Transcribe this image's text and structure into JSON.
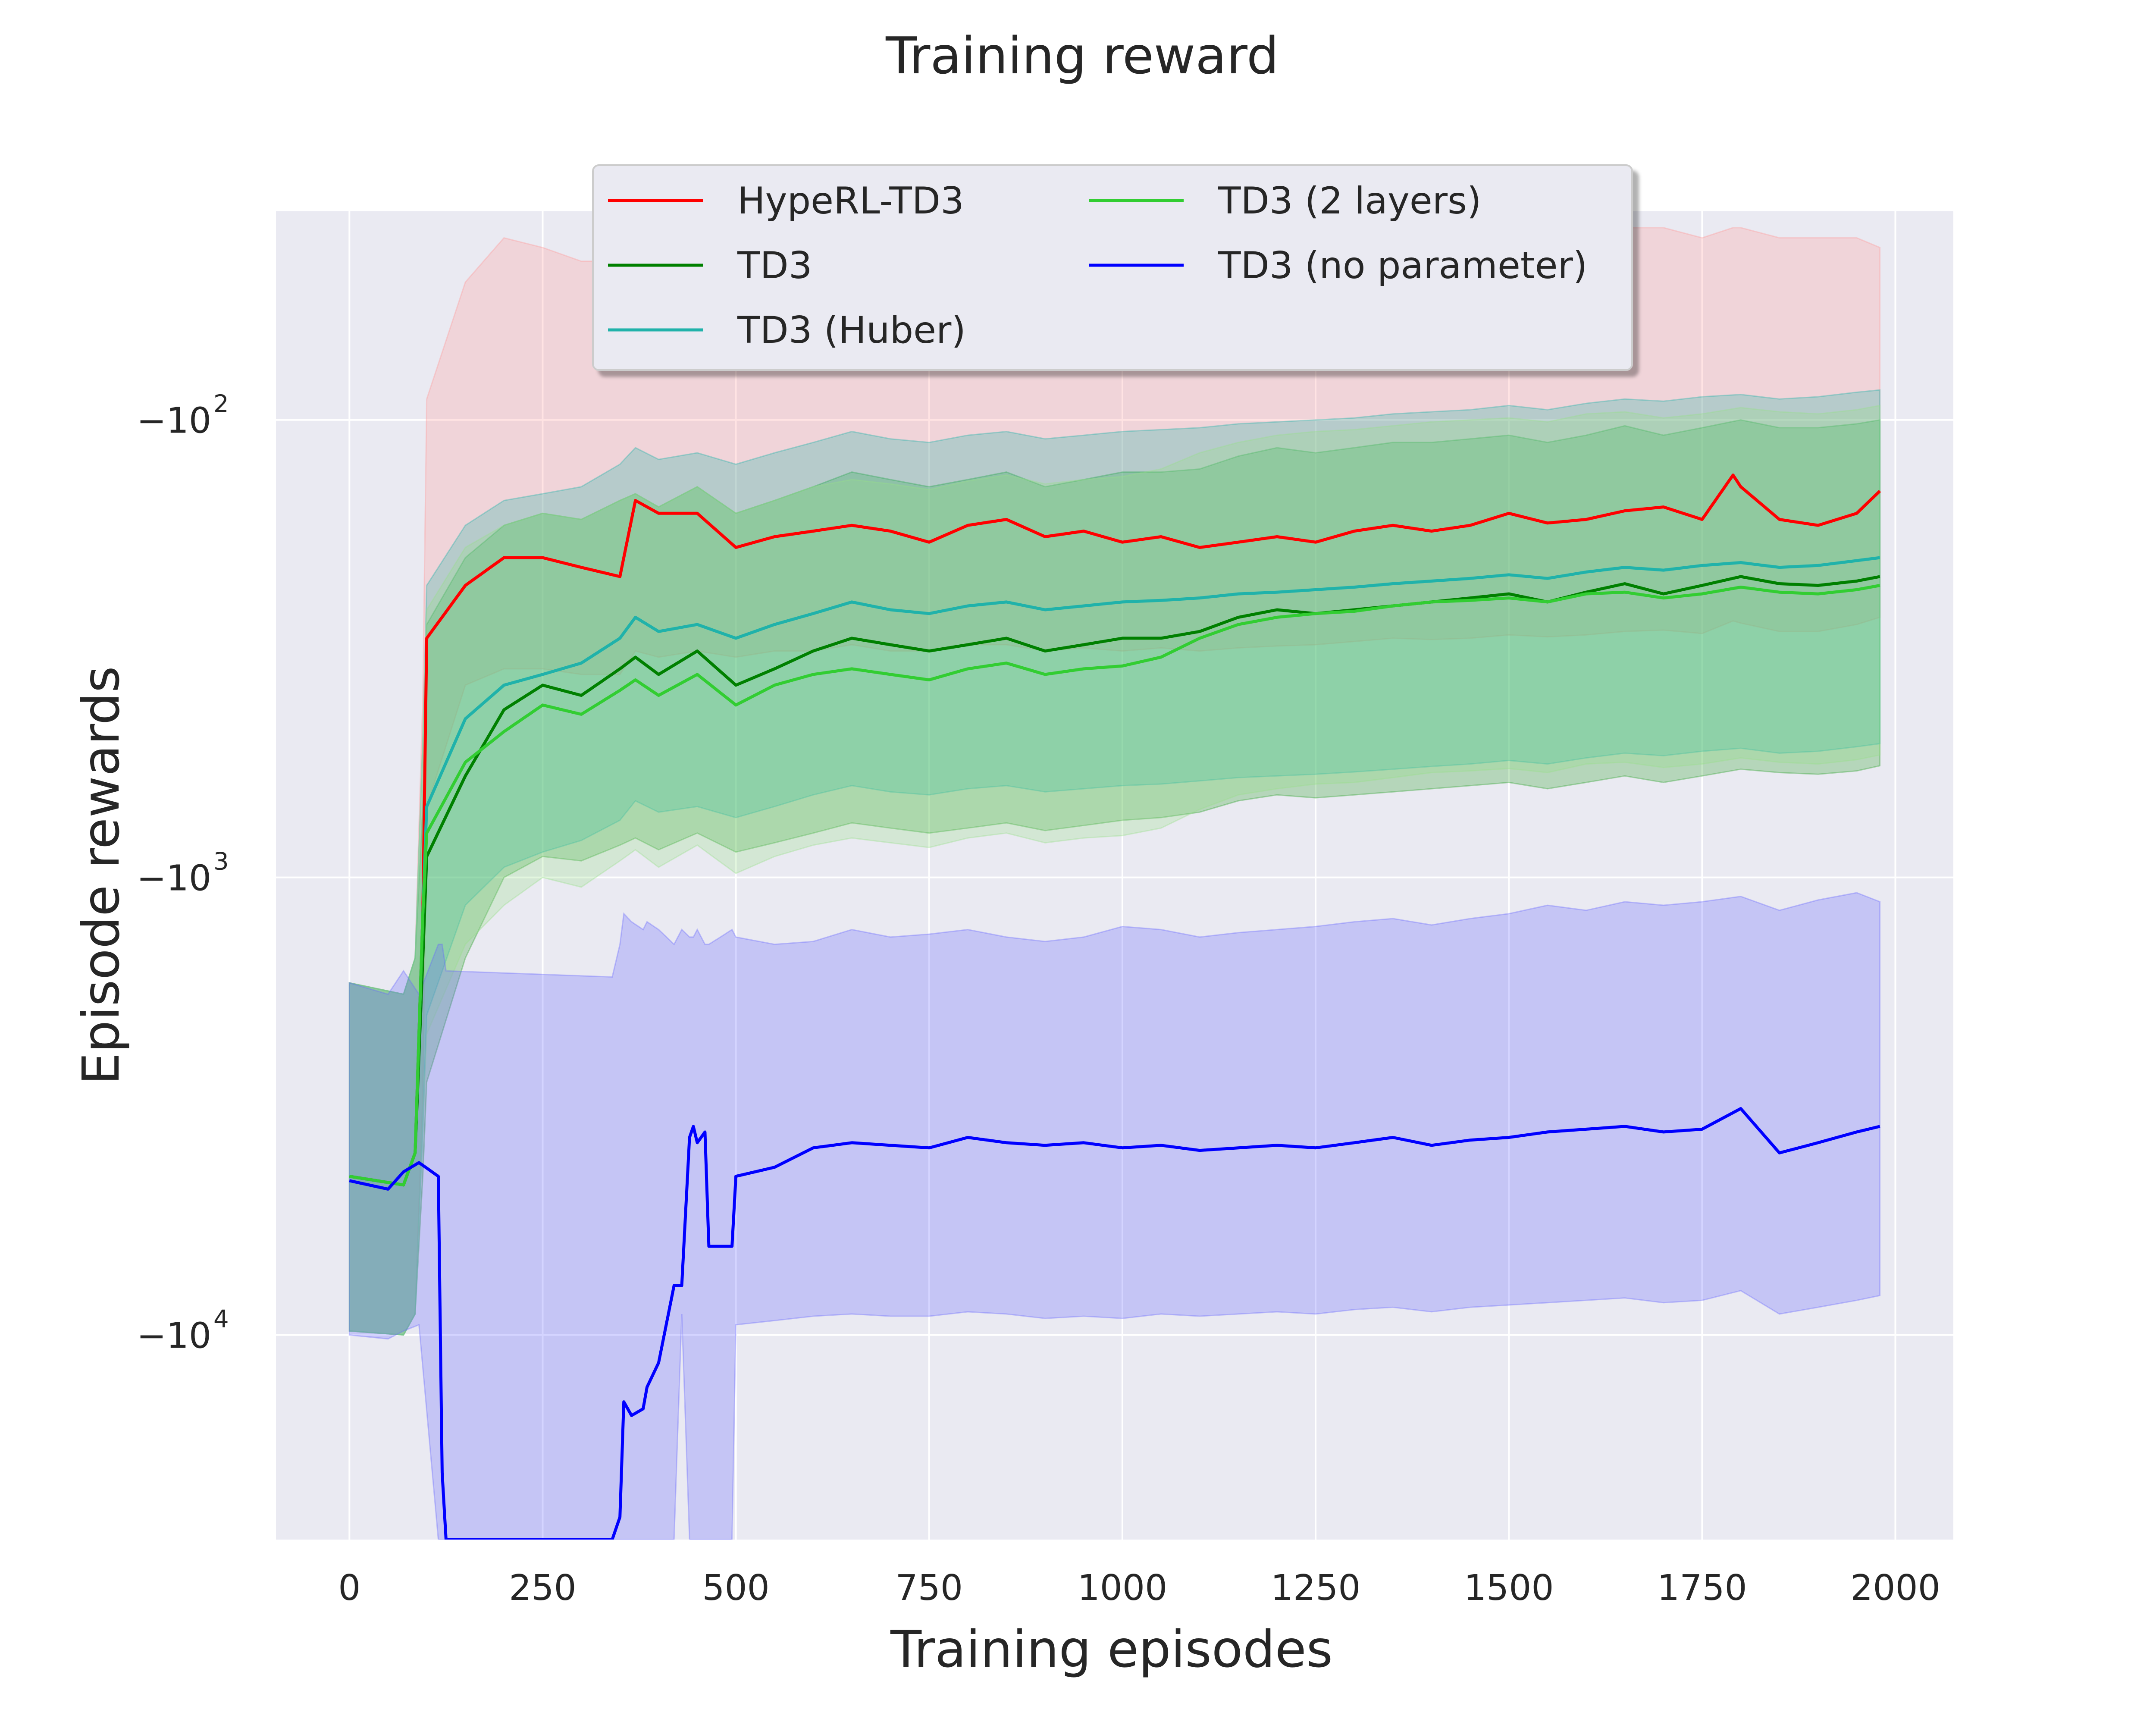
{
  "chart_data": {
    "type": "line",
    "title": "Training reward",
    "xlabel": "Training episodes",
    "ylabel": "Episode rewards",
    "xlim": [
      -95,
      2075
    ],
    "x_ticks": [
      0,
      250,
      500,
      750,
      1000,
      1250,
      1500,
      1750,
      2000
    ],
    "x_tick_labels": [
      "0",
      "250",
      "500",
      "750",
      "1000",
      "1250",
      "1500",
      "1750",
      "2000"
    ],
    "yscale": "symlog-negative",
    "ylim": [
      -28000,
      -35
    ],
    "y_ticks": [
      -100,
      -1000,
      -10000
    ],
    "y_tick_labels": [
      {
        "base": "−10",
        "exp": "2"
      },
      {
        "base": "−10",
        "exp": "3"
      },
      {
        "base": "−10",
        "exp": "4"
      }
    ],
    "grid": true,
    "legend_position": "top-center",
    "legend_columns": 2,
    "colors": {
      "background": "#eaeaf2",
      "grid": "#ffffff",
      "text": "#262626"
    },
    "series": [
      {
        "name": "HypeRL-TD3",
        "color": "#ff0000",
        "band_color": "#ff9999",
        "x": [
          0,
          70,
          85,
          95,
          100,
          150,
          200,
          250,
          300,
          350,
          370,
          400,
          450,
          500,
          550,
          600,
          650,
          700,
          750,
          800,
          850,
          900,
          950,
          1000,
          1050,
          1100,
          1150,
          1200,
          1250,
          1300,
          1350,
          1400,
          1450,
          1500,
          1550,
          1600,
          1650,
          1700,
          1750,
          1790,
          1800,
          1850,
          1900,
          1950,
          1980
        ],
        "mean": [
          -4500,
          -4700,
          -4000,
          -1200,
          -300,
          -230,
          -200,
          -200,
          -210,
          -220,
          -150,
          -160,
          -160,
          -190,
          -180,
          -175,
          -170,
          -175,
          -185,
          -170,
          -165,
          -180,
          -175,
          -185,
          -180,
          -190,
          -185,
          -180,
          -185,
          -175,
          -170,
          -175,
          -170,
          -160,
          -168,
          -165,
          -158,
          -155,
          -165,
          -132,
          -140,
          -165,
          -170,
          -160,
          -143
        ],
        "upper": [
          -1700,
          -1800,
          -1500,
          -400,
          -90,
          -50,
          -40,
          -42,
          -45,
          -45,
          -40,
          -42,
          -42,
          -45,
          -43,
          -42,
          -40,
          -42,
          -42,
          -40,
          -40,
          -42,
          -40,
          -42,
          -42,
          -43,
          -43,
          -42,
          -42,
          -42,
          -40,
          -42,
          -40,
          -38,
          -40,
          -40,
          -38,
          -38,
          -40,
          -38,
          -38,
          -40,
          -40,
          -40,
          -42
        ],
        "lower": [
          -9800,
          -10000,
          -9000,
          -3000,
          -700,
          -380,
          -350,
          -350,
          -360,
          -360,
          -320,
          -330,
          -320,
          -330,
          -320,
          -320,
          -310,
          -320,
          -320,
          -310,
          -310,
          -320,
          -315,
          -320,
          -315,
          -320,
          -315,
          -312,
          -310,
          -305,
          -300,
          -302,
          -300,
          -295,
          -298,
          -295,
          -290,
          -288,
          -293,
          -275,
          -278,
          -290,
          -290,
          -280,
          -270
        ]
      },
      {
        "name": "TD3",
        "color": "#008000",
        "band_color": "#2ca02c",
        "x": [
          0,
          70,
          85,
          95,
          100,
          150,
          200,
          250,
          300,
          350,
          370,
          400,
          450,
          500,
          550,
          600,
          650,
          700,
          750,
          800,
          850,
          900,
          950,
          1000,
          1050,
          1100,
          1150,
          1200,
          1250,
          1300,
          1350,
          1400,
          1450,
          1500,
          1550,
          1600,
          1650,
          1700,
          1750,
          1800,
          1850,
          1900,
          1950,
          1980
        ],
        "mean": [
          -4500,
          -4700,
          -4000,
          -1500,
          -900,
          -600,
          -430,
          -380,
          -400,
          -350,
          -330,
          -360,
          -320,
          -380,
          -350,
          -320,
          -300,
          -310,
          -320,
          -310,
          -300,
          -320,
          -310,
          -300,
          -300,
          -290,
          -270,
          -260,
          -265,
          -260,
          -255,
          -250,
          -245,
          -240,
          -250,
          -238,
          -228,
          -240,
          -230,
          -220,
          -228,
          -230,
          -225,
          -220
        ],
        "upper": [
          -1700,
          -1800,
          -1500,
          -700,
          -280,
          -200,
          -170,
          -160,
          -165,
          -150,
          -145,
          -155,
          -140,
          -160,
          -150,
          -140,
          -130,
          -135,
          -140,
          -135,
          -130,
          -140,
          -135,
          -130,
          -130,
          -128,
          -120,
          -115,
          -118,
          -115,
          -112,
          -112,
          -110,
          -108,
          -112,
          -108,
          -103,
          -108,
          -104,
          -100,
          -104,
          -104,
          -102,
          -100
        ],
        "lower": [
          -9800,
          -10000,
          -9000,
          -4500,
          -2800,
          -1500,
          -1000,
          -900,
          -920,
          -850,
          -820,
          -870,
          -800,
          -880,
          -840,
          -800,
          -760,
          -780,
          -800,
          -780,
          -760,
          -790,
          -770,
          -750,
          -740,
          -720,
          -680,
          -660,
          -670,
          -660,
          -650,
          -640,
          -630,
          -620,
          -640,
          -620,
          -600,
          -620,
          -600,
          -580,
          -590,
          -595,
          -585,
          -570
        ]
      },
      {
        "name": "TD3 (Huber)",
        "color": "#20b2aa",
        "band_color": "#20b2aa",
        "x": [
          0,
          70,
          85,
          95,
          100,
          150,
          200,
          250,
          300,
          350,
          370,
          400,
          450,
          500,
          550,
          600,
          650,
          700,
          750,
          800,
          850,
          900,
          950,
          1000,
          1050,
          1100,
          1150,
          1200,
          1250,
          1300,
          1350,
          1400,
          1450,
          1500,
          1550,
          1600,
          1650,
          1700,
          1750,
          1800,
          1850,
          1900,
          1950,
          1980
        ],
        "mean": [
          -4500,
          -4700,
          -4000,
          -1200,
          -700,
          -450,
          -380,
          -360,
          -340,
          -300,
          -270,
          -290,
          -280,
          -300,
          -280,
          -265,
          -250,
          -260,
          -265,
          -255,
          -250,
          -260,
          -255,
          -250,
          -248,
          -245,
          -240,
          -238,
          -235,
          -232,
          -228,
          -225,
          -222,
          -218,
          -222,
          -215,
          -210,
          -213,
          -208,
          -205,
          -210,
          -208,
          -203,
          -200
        ],
        "upper": [
          -1700,
          -1800,
          -1500,
          -500,
          -230,
          -170,
          -150,
          -145,
          -140,
          -125,
          -115,
          -122,
          -118,
          -125,
          -118,
          -112,
          -106,
          -110,
          -112,
          -108,
          -106,
          -110,
          -108,
          -106,
          -105,
          -104,
          -102,
          -101,
          -100,
          -99,
          -97,
          -96,
          -95,
          -93,
          -95,
          -92,
          -90,
          -91,
          -89,
          -88,
          -90,
          -89,
          -87,
          -86
        ],
        "lower": [
          -9800,
          -10000,
          -9000,
          -3500,
          -2000,
          -1150,
          -950,
          -880,
          -830,
          -750,
          -680,
          -720,
          -700,
          -740,
          -700,
          -660,
          -630,
          -650,
          -660,
          -640,
          -630,
          -650,
          -640,
          -630,
          -625,
          -615,
          -605,
          -600,
          -595,
          -588,
          -580,
          -572,
          -565,
          -555,
          -565,
          -548,
          -535,
          -542,
          -530,
          -522,
          -535,
          -530,
          -518,
          -510
        ]
      },
      {
        "name": "TD3 (2 layers)",
        "color": "#32cd32",
        "band_color": "#98df8a",
        "x": [
          0,
          70,
          85,
          95,
          100,
          150,
          200,
          250,
          300,
          350,
          370,
          400,
          450,
          500,
          550,
          600,
          650,
          700,
          750,
          800,
          850,
          900,
          950,
          1000,
          1050,
          1100,
          1150,
          1200,
          1250,
          1300,
          1350,
          1400,
          1450,
          1500,
          1550,
          1600,
          1650,
          1700,
          1750,
          1800,
          1850,
          1900,
          1950,
          1980
        ],
        "mean": [
          -4500,
          -4700,
          -4000,
          -1200,
          -800,
          -560,
          -480,
          -420,
          -440,
          -390,
          -370,
          -400,
          -360,
          -420,
          -380,
          -360,
          -350,
          -360,
          -370,
          -350,
          -340,
          -360,
          -350,
          -345,
          -330,
          -300,
          -280,
          -270,
          -265,
          -262,
          -255,
          -250,
          -248,
          -245,
          -250,
          -240,
          -238,
          -245,
          -240,
          -232,
          -238,
          -240,
          -235,
          -230
        ],
        "upper": [
          -1700,
          -1800,
          -1500,
          -500,
          -260,
          -190,
          -170,
          -160,
          -165,
          -150,
          -145,
          -155,
          -140,
          -160,
          -150,
          -140,
          -135,
          -138,
          -142,
          -136,
          -132,
          -138,
          -135,
          -133,
          -128,
          -118,
          -112,
          -108,
          -106,
          -105,
          -103,
          -101,
          -100,
          -99,
          -101,
          -97,
          -96,
          -99,
          -97,
          -94,
          -96,
          -97,
          -95,
          -93
        ],
        "lower": [
          -9800,
          -10000,
          -9000,
          -3500,
          -2200,
          -1400,
          -1150,
          -1000,
          -1050,
          -920,
          -870,
          -950,
          -850,
          -980,
          -900,
          -850,
          -820,
          -840,
          -860,
          -820,
          -800,
          -840,
          -820,
          -810,
          -780,
          -710,
          -660,
          -640,
          -625,
          -620,
          -605,
          -590,
          -585,
          -578,
          -590,
          -565,
          -560,
          -575,
          -565,
          -548,
          -560,
          -565,
          -553,
          -540
        ]
      },
      {
        "name": "TD3 (no parameter)",
        "color": "#0000ff",
        "band_color": "#6666ff",
        "x": [
          0,
          50,
          70,
          90,
          115,
          120,
          125,
          340,
          350,
          355,
          365,
          380,
          385,
          400,
          420,
          430,
          440,
          445,
          450,
          460,
          465,
          480,
          495,
          500,
          550,
          600,
          650,
          700,
          750,
          800,
          850,
          900,
          950,
          1000,
          1050,
          1100,
          1150,
          1200,
          1250,
          1300,
          1350,
          1400,
          1450,
          1500,
          1550,
          1600,
          1650,
          1700,
          1750,
          1800,
          1850,
          1900,
          1950,
          1980
        ],
        "mean": [
          -4600,
          -4800,
          -4400,
          -4200,
          -4500,
          -20000,
          -28000,
          -28000,
          -25000,
          -14000,
          -15000,
          -14500,
          -13000,
          -11500,
          -7800,
          -7800,
          -3700,
          -3500,
          -3800,
          -3600,
          -6400,
          -6400,
          -6400,
          -4500,
          -4300,
          -3900,
          -3800,
          -3850,
          -3900,
          -3700,
          -3800,
          -3850,
          -3800,
          -3900,
          -3850,
          -3950,
          -3900,
          -3850,
          -3900,
          -3800,
          -3700,
          -3850,
          -3750,
          -3700,
          -3600,
          -3550,
          -3500,
          -3600,
          -3550,
          -3200,
          -4000,
          -3800,
          -3600,
          -3500
        ],
        "upper": [
          -1700,
          -1800,
          -1600,
          -1800,
          -1400,
          -1400,
          -1600,
          -1650,
          -1400,
          -1200,
          -1250,
          -1300,
          -1250,
          -1300,
          -1400,
          -1300,
          -1350,
          -1350,
          -1300,
          -1400,
          -1400,
          -1350,
          -1300,
          -1350,
          -1400,
          -1380,
          -1300,
          -1350,
          -1330,
          -1300,
          -1350,
          -1380,
          -1350,
          -1280,
          -1300,
          -1350,
          -1320,
          -1300,
          -1280,
          -1250,
          -1230,
          -1270,
          -1230,
          -1200,
          -1150,
          -1180,
          -1130,
          -1150,
          -1130,
          -1100,
          -1180,
          -1120,
          -1080,
          -1130
        ],
        "lower": [
          -10000,
          -10200,
          -9800,
          -9500,
          -28000,
          -28000,
          -28000,
          -28000,
          -28000,
          -28000,
          -28000,
          -28000,
          -28000,
          -28000,
          -28000,
          -9000,
          -28000,
          -28000,
          -28000,
          -28000,
          -28000,
          -28000,
          -28000,
          -9500,
          -9300,
          -9100,
          -9000,
          -9100,
          -9100,
          -8900,
          -9000,
          -9200,
          -9100,
          -9200,
          -9000,
          -9100,
          -9000,
          -8900,
          -9000,
          -8800,
          -8700,
          -8900,
          -8700,
          -8600,
          -8500,
          -8400,
          -8300,
          -8500,
          -8400,
          -8000,
          -9000,
          -8700,
          -8400,
          -8200
        ]
      }
    ]
  }
}
